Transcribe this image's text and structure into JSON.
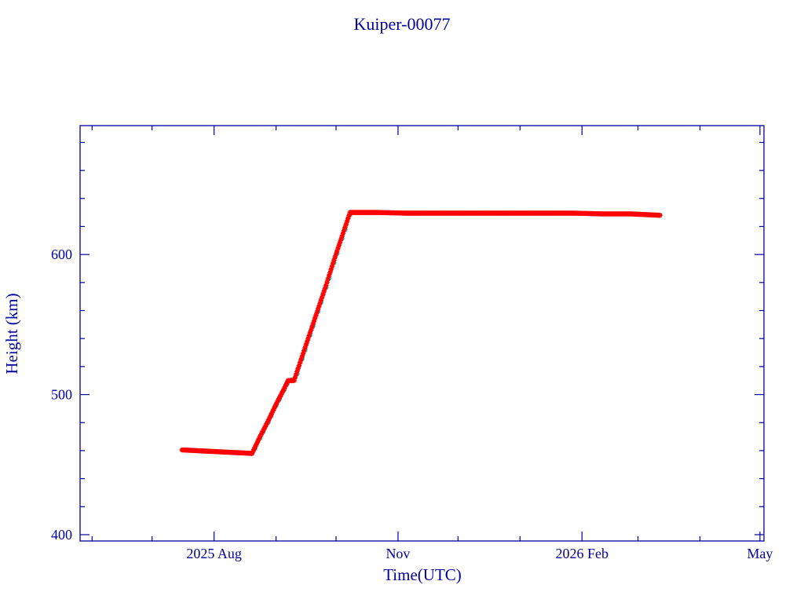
{
  "chart_data": {
    "type": "scatter",
    "title": "Kuiper-00077",
    "xlabel": "Time(UTC)",
    "ylabel": "Height (km)",
    "xlim": [
      "2025-05-26",
      "2026-05-03"
    ],
    "ylim": [
      395.5,
      692
    ],
    "x_ticks": [
      {
        "date": "2025-08-01",
        "label": "2025 Aug"
      },
      {
        "date": "2025-11-01",
        "label": "Nov"
      },
      {
        "date": "2026-02-01",
        "label": "2026 Feb"
      },
      {
        "date": "2026-05-01",
        "label": "May"
      }
    ],
    "x_minor_ticks": [
      "2025-06-01",
      "2025-07-01",
      "2025-09-01",
      "2025-10-01",
      "2025-12-01",
      "2026-01-01",
      "2026-03-01",
      "2026-04-01"
    ],
    "y_ticks": [
      400,
      500,
      600
    ],
    "y_minor_step": 20,
    "grid": false,
    "colors": {
      "axes": "#0000a0",
      "marker": "#ff0000",
      "marker_alt": "#00e5e5"
    },
    "series": [
      {
        "marker": "star",
        "points": [
          [
            "2025-07-16",
            460.5
          ],
          [
            "2025-07-23",
            460
          ],
          [
            "2025-07-30",
            459.5
          ],
          [
            "2025-08-06",
            459
          ],
          [
            "2025-08-13",
            458.5
          ],
          [
            "2025-08-20",
            458
          ],
          [
            "2025-08-24",
            470
          ],
          [
            "2025-08-28",
            481
          ],
          [
            "2025-09-01",
            493
          ],
          [
            "2025-09-05",
            504
          ],
          [
            "2025-09-07",
            510
          ],
          [
            "2025-09-10",
            510
          ],
          [
            "2025-09-14",
            527
          ],
          [
            "2025-09-18",
            544
          ],
          [
            "2025-09-22",
            561
          ],
          [
            "2025-09-26",
            578
          ],
          [
            "2025-09-30",
            596
          ],
          [
            "2025-10-04",
            613
          ],
          [
            "2025-10-08",
            630
          ],
          [
            "2025-10-22",
            630
          ],
          [
            "2025-11-05",
            629.5
          ],
          [
            "2025-11-19",
            629.5
          ],
          [
            "2025-12-03",
            629.5
          ],
          [
            "2025-12-17",
            629.5
          ],
          [
            "2025-12-31",
            629.5
          ],
          [
            "2026-01-14",
            629.5
          ],
          [
            "2026-01-28",
            629.5
          ],
          [
            "2026-02-11",
            629
          ],
          [
            "2026-02-25",
            629
          ],
          [
            "2026-03-12",
            628
          ]
        ]
      }
    ]
  }
}
